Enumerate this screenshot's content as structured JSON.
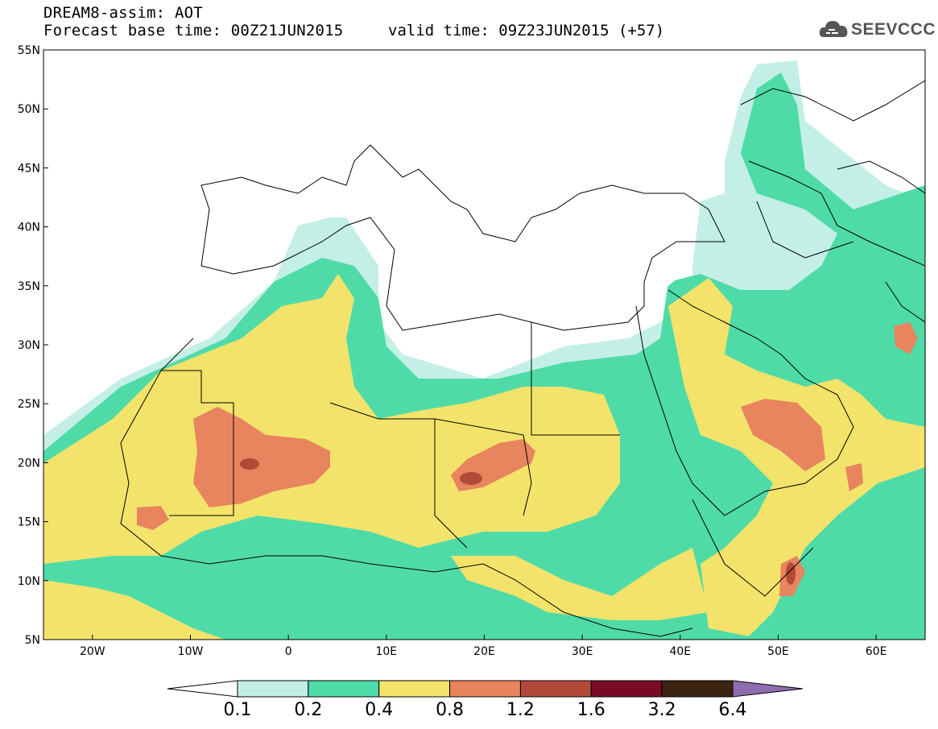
{
  "header": {
    "title": "DREAM8-assim: AOT",
    "base_time": "Forecast base time: 00Z21JUN2015",
    "valid_time": "valid time: 09Z23JUN2015 (+57)"
  },
  "logo": {
    "text": "SEEVCCC",
    "icon": "cloud-icon"
  },
  "map": {
    "lon_range": [
      -25,
      65
    ],
    "lat_range": [
      5,
      55
    ],
    "lat_labels": [
      "55N",
      "50N",
      "45N",
      "40N",
      "35N",
      "30N",
      "25N",
      "20N",
      "15N",
      "10N",
      "5N"
    ],
    "lon_labels": [
      "20W",
      "10W",
      "0",
      "10E",
      "20E",
      "30E",
      "40E",
      "50E",
      "60E"
    ],
    "colors": {
      "0.1-0.2": "#c4efe6",
      "0.2-0.4": "#4fdba8",
      "0.4-0.8": "#f3e36b",
      "0.8-1.2": "#e8845e",
      "1.2-1.6": "#b24a3a",
      "1.6-3.2": "#7a0b26",
      "3.2-6.4": "#3e2412",
      ">6.4": "#8e6cb0"
    }
  },
  "colorbar": {
    "labels": [
      "0.1",
      "0.2",
      "0.4",
      "0.8",
      "1.2",
      "1.6",
      "3.2",
      "6.4"
    ],
    "colors": [
      "#ffffff",
      "#c4efe6",
      "#4fdba8",
      "#f3e36b",
      "#e8845e",
      "#b24a3a",
      "#7a0b26",
      "#3e2412",
      "#8e6cb0"
    ]
  }
}
